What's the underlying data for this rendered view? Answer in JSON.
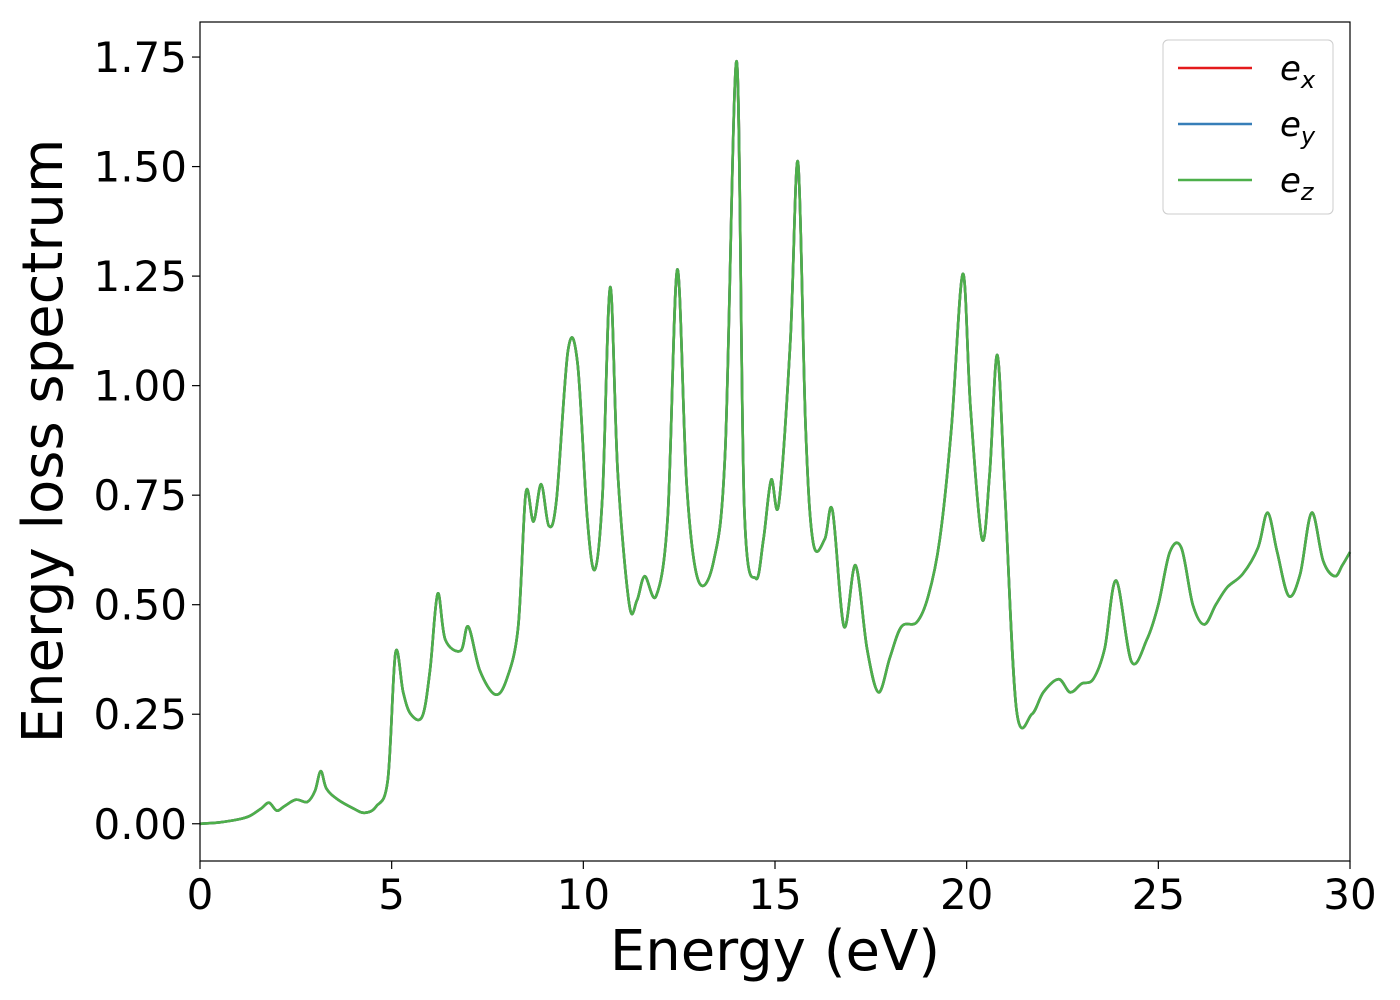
{
  "chart_data": {
    "type": "line",
    "xlabel": "Energy (eV)",
    "ylabel": "Energy loss spectrum",
    "xlim": [
      0,
      30
    ],
    "ylim": [
      -0.085,
      1.83
    ],
    "xticks": [
      0,
      5,
      10,
      15,
      20,
      25,
      30
    ],
    "xtick_labels": [
      "0",
      "5",
      "10",
      "15",
      "20",
      "25",
      "30"
    ],
    "yticks": [
      0,
      0.25,
      0.5,
      0.75,
      1.0,
      1.25,
      1.5,
      1.75
    ],
    "ytick_labels": [
      "0.00",
      "0.25",
      "0.50",
      "0.75",
      "1.00",
      "1.25",
      "1.50",
      "1.75"
    ],
    "grid": false,
    "legend_position": "top-right",
    "series": [
      {
        "name": "e",
        "subscript": "x",
        "color": "#e41a1c"
      },
      {
        "name": "e",
        "subscript": "y",
        "color": "#377eb8"
      },
      {
        "name": "e",
        "subscript": "z",
        "color": "#4daf4a"
      }
    ],
    "x": [
      0,
      0.5,
      1.0,
      1.3,
      1.6,
      1.8,
      2.0,
      2.2,
      2.5,
      2.8,
      3.0,
      3.15,
      3.3,
      3.6,
      4.0,
      4.3,
      4.6,
      4.9,
      5.1,
      5.3,
      5.5,
      5.8,
      6.0,
      6.2,
      6.4,
      6.8,
      7.0,
      7.3,
      7.7,
      8.0,
      8.3,
      8.5,
      8.7,
      8.9,
      9.1,
      9.3,
      9.6,
      9.85,
      10.1,
      10.3,
      10.5,
      10.7,
      10.9,
      11.2,
      11.4,
      11.6,
      11.9,
      12.2,
      12.45,
      12.7,
      13.0,
      13.4,
      13.7,
      14.0,
      14.2,
      14.5,
      14.7,
      14.9,
      15.1,
      15.4,
      15.6,
      15.8,
      16.0,
      16.3,
      16.5,
      16.8,
      17.1,
      17.4,
      17.7,
      18.0,
      18.3,
      18.7,
      19.0,
      19.3,
      19.6,
      19.9,
      20.1,
      20.4,
      20.6,
      20.8,
      21.0,
      21.3,
      21.7,
      22.0,
      22.4,
      22.7,
      23.0,
      23.3,
      23.6,
      23.9,
      24.3,
      24.7,
      25.0,
      25.3,
      25.6,
      25.9,
      26.2,
      26.5,
      26.8,
      27.2,
      27.6,
      27.85,
      28.1,
      28.4,
      28.7,
      29.0,
      29.3,
      29.6,
      29.8,
      30.0
    ],
    "y": [
      0.0,
      0.003,
      0.01,
      0.018,
      0.035,
      0.048,
      0.03,
      0.04,
      0.055,
      0.05,
      0.075,
      0.12,
      0.08,
      0.055,
      0.035,
      0.025,
      0.04,
      0.1,
      0.39,
      0.3,
      0.25,
      0.245,
      0.35,
      0.525,
      0.42,
      0.395,
      0.45,
      0.35,
      0.295,
      0.33,
      0.45,
      0.755,
      0.69,
      0.775,
      0.68,
      0.74,
      1.08,
      1.05,
      0.7,
      0.58,
      0.75,
      1.225,
      0.8,
      0.5,
      0.51,
      0.565,
      0.52,
      0.7,
      1.265,
      0.77,
      0.555,
      0.6,
      0.85,
      1.74,
      0.72,
      0.56,
      0.65,
      0.785,
      0.73,
      1.1,
      1.51,
      0.9,
      0.64,
      0.65,
      0.715,
      0.45,
      0.59,
      0.4,
      0.3,
      0.38,
      0.45,
      0.46,
      0.52,
      0.65,
      0.9,
      1.255,
      0.95,
      0.65,
      0.8,
      1.07,
      0.75,
      0.26,
      0.25,
      0.3,
      0.33,
      0.3,
      0.32,
      0.33,
      0.4,
      0.555,
      0.37,
      0.42,
      0.5,
      0.62,
      0.63,
      0.5,
      0.455,
      0.5,
      0.54,
      0.57,
      0.63,
      0.71,
      0.62,
      0.52,
      0.57,
      0.71,
      0.6,
      0.565,
      0.59,
      0.62
    ]
  }
}
